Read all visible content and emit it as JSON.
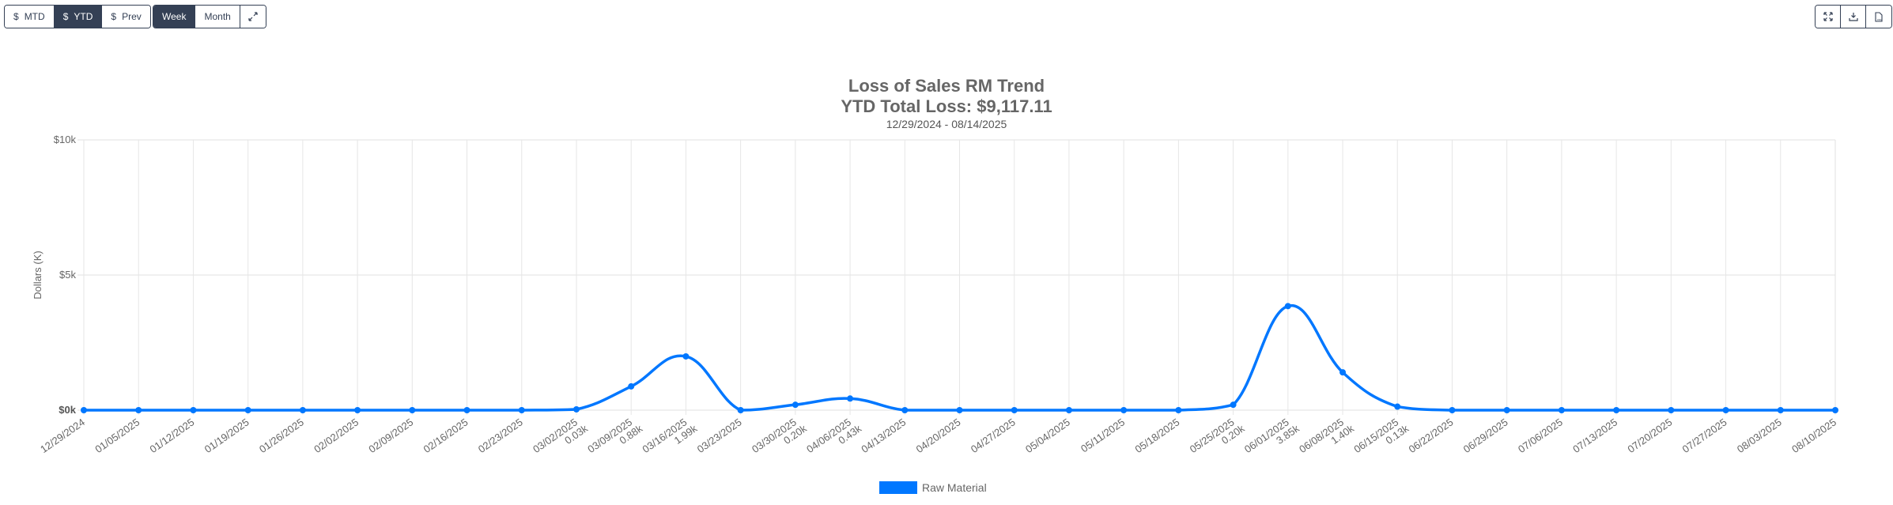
{
  "toolbar": {
    "metric_buttons": [
      {
        "symbol": "$",
        "label": "MTD",
        "active": false
      },
      {
        "symbol": "$",
        "label": "YTD",
        "active": true
      },
      {
        "symbol": "$",
        "label": "Prev",
        "active": false
      }
    ],
    "period_buttons": [
      {
        "label": "Week",
        "active": true
      },
      {
        "label": "Month",
        "active": false
      }
    ],
    "extra_icon": "expand-arrows-icon",
    "right_icons": [
      "fullscreen-icon",
      "download-icon",
      "csv-file-icon"
    ]
  },
  "chart_data": {
    "type": "line",
    "title": "Loss of Sales RM Trend",
    "subtitle": "YTD Total Loss: $9,117.11",
    "date_range": "12/29/2024 - 08/14/2025",
    "xlabel": "",
    "ylabel": "Dollars (K)",
    "ylim": [
      0,
      10
    ],
    "yticks": [
      "$0k",
      "$5k",
      "$10k"
    ],
    "grid": true,
    "legend_position": "bottom",
    "color": "#0077ff",
    "categories": [
      "12/29/2024",
      "01/05/2025",
      "01/12/2025",
      "01/19/2025",
      "01/26/2025",
      "02/02/2025",
      "02/09/2025",
      "02/16/2025",
      "02/23/2025",
      "03/02/2025",
      "03/09/2025",
      "03/16/2025",
      "03/23/2025",
      "03/30/2025",
      "04/06/2025",
      "04/13/2025",
      "04/20/2025",
      "04/27/2025",
      "05/04/2025",
      "05/11/2025",
      "05/18/2025",
      "05/25/2025",
      "06/01/2025",
      "06/08/2025",
      "06/15/2025",
      "06/22/2025",
      "06/29/2025",
      "07/06/2025",
      "07/13/2025",
      "07/20/2025",
      "07/27/2025",
      "08/03/2025",
      "08/10/2025"
    ],
    "series": [
      {
        "name": "Raw Material",
        "values": [
          0,
          0,
          0,
          0,
          0,
          0,
          0,
          0,
          0,
          0.03,
          0.88,
          1.99,
          0,
          0.2,
          0.43,
          0,
          0,
          0,
          0,
          0,
          0,
          0.2,
          3.85,
          1.4,
          0.13,
          0,
          0,
          0,
          0,
          0,
          0,
          0,
          0
        ],
        "value_labels": [
          "",
          "",
          "",
          "",
          "",
          "",
          "",
          "",
          "",
          "0.03k",
          "0.88k",
          "1.99k",
          "",
          "0.20k",
          "0.43k",
          "",
          "",
          "",
          "",
          "",
          "",
          "0.20k",
          "3.85k",
          "1.40k",
          "0.13k",
          "",
          "",
          "",
          "",
          "",
          "",
          "",
          ""
        ]
      }
    ]
  }
}
